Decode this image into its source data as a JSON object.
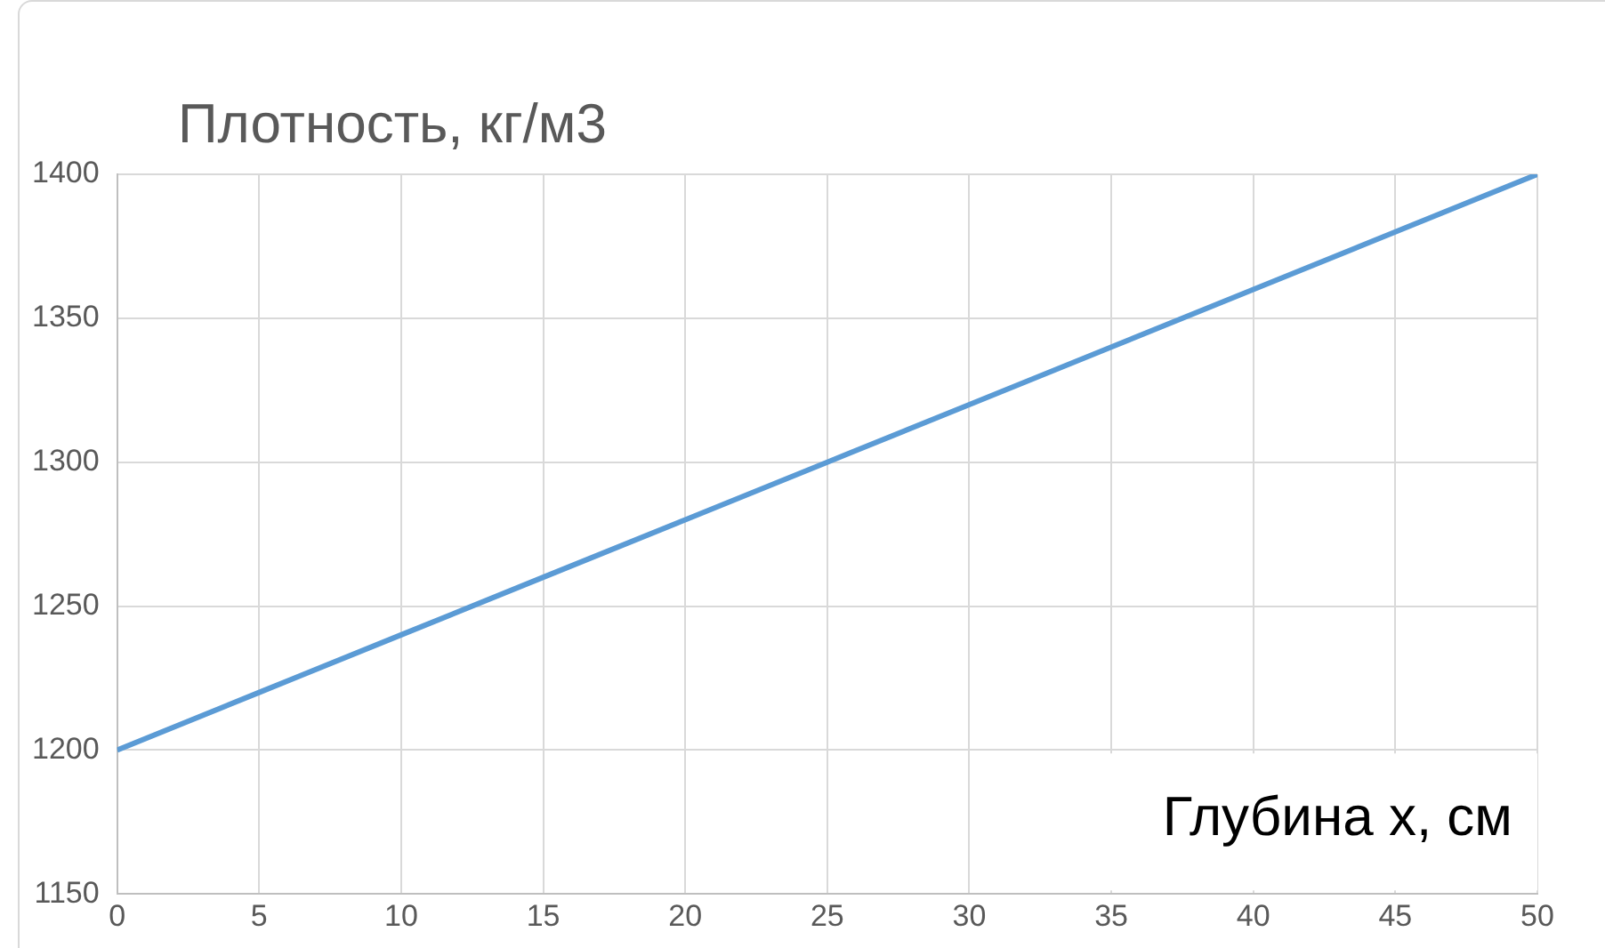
{
  "chart_data": {
    "type": "line",
    "ylabel": "Плотность, кг/м3",
    "xlabel": "Глубина x, см",
    "x": [
      0,
      5,
      10,
      15,
      20,
      25,
      30,
      35,
      40,
      45,
      50
    ],
    "series": [
      {
        "color": "#5b9bd5",
        "values": [
          1200,
          1220,
          1240,
          1260,
          1280,
          1300,
          1320,
          1340,
          1360,
          1380,
          1400
        ]
      }
    ],
    "xlim": [
      0,
      50
    ],
    "xticks": [
      0,
      5,
      10,
      15,
      20,
      25,
      30,
      35,
      40,
      45,
      50
    ],
    "ylim": [
      1150,
      1400
    ],
    "yticks": [
      1150,
      1200,
      1250,
      1300,
      1350,
      1400
    ],
    "grid": true,
    "legend": false,
    "marker": "none",
    "line_style": "solid"
  }
}
